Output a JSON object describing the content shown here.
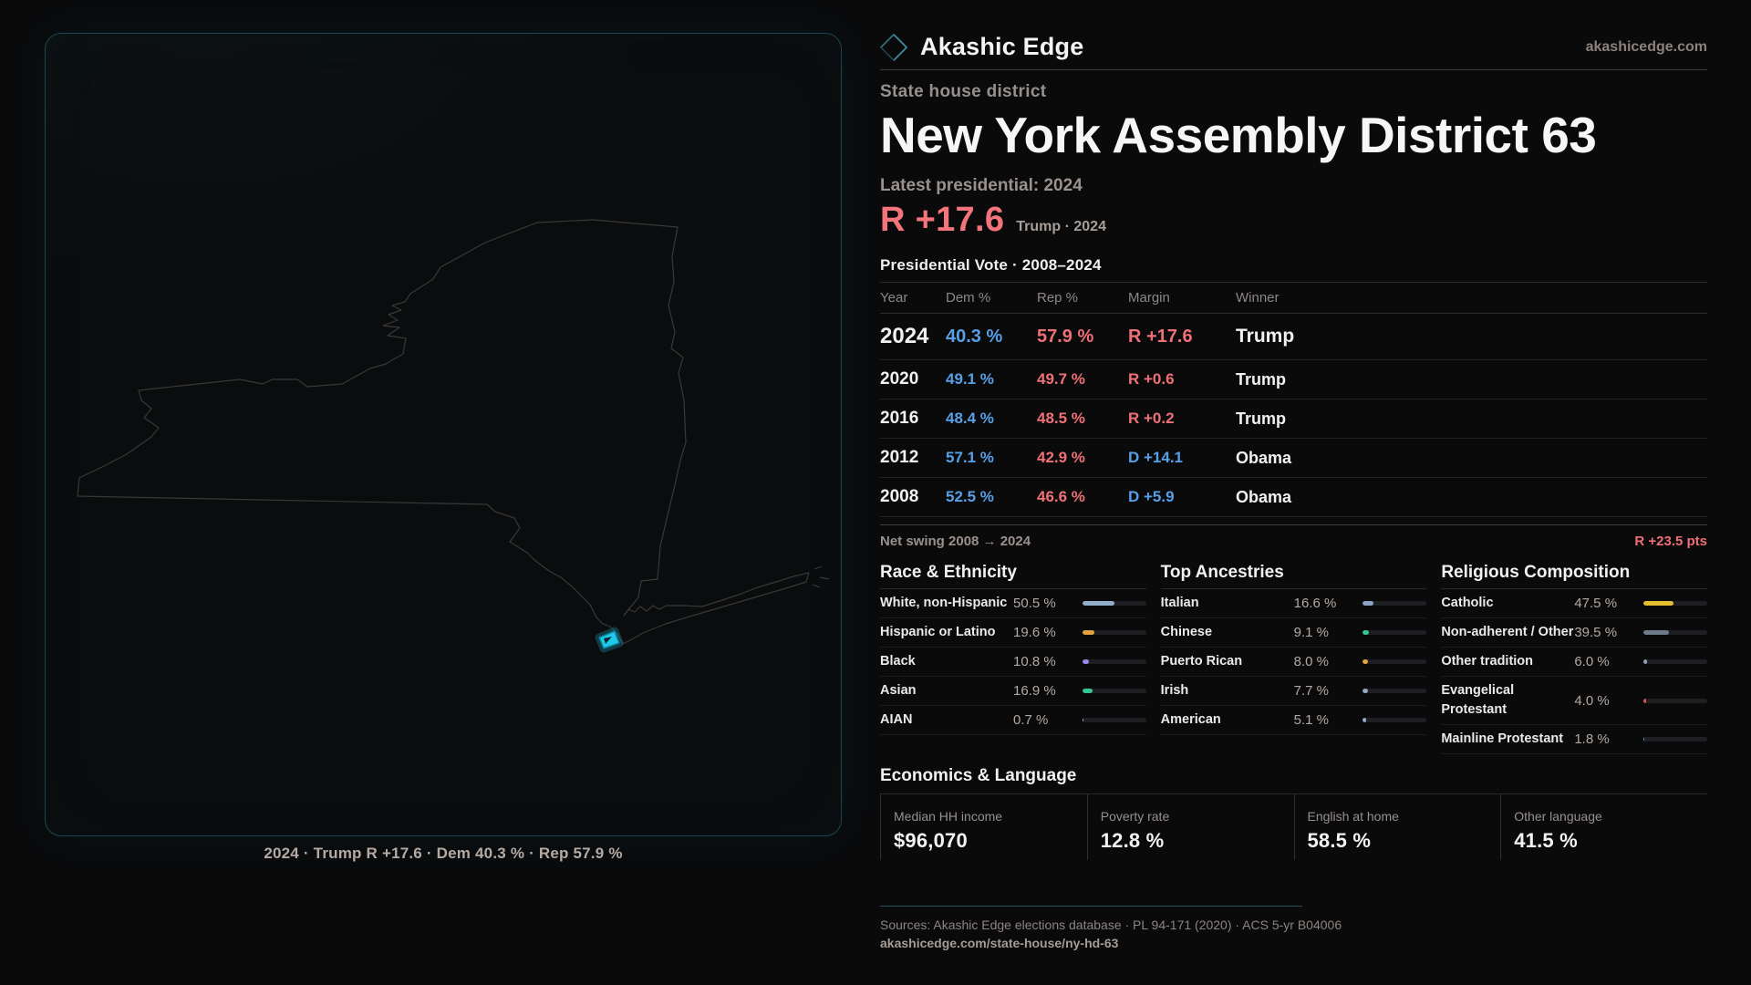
{
  "header": {
    "brand": "Akashic Edge",
    "domain": "akashicedge.com",
    "eyebrow": "State house district",
    "title": "New York Assembly District 63",
    "latest_label": "Latest presidential: 2024",
    "latest_margin": "R +17.6",
    "latest_sub": "Trump · 2024"
  },
  "map": {
    "caption": "2024 · Trump R +17.6 · Dem 40.3 % · Rep 57.9 %",
    "district_color": "#1ec9ec"
  },
  "vote_table": {
    "section_title": "Presidential Vote · 2008–2024",
    "columns": {
      "year": "Year",
      "dem": "Dem %",
      "rep": "Rep %",
      "margin": "Margin",
      "winner": "Winner"
    },
    "rows": [
      {
        "year": "2024",
        "dem": "40.3 %",
        "rep": "57.9 %",
        "margin": "R +17.6",
        "winner": "Trump"
      },
      {
        "year": "2020",
        "dem": "49.1 %",
        "rep": "49.7 %",
        "margin": "R +0.6",
        "winner": "Trump"
      },
      {
        "year": "2016",
        "dem": "48.4 %",
        "rep": "48.5 %",
        "margin": "R +0.2",
        "winner": "Trump"
      },
      {
        "year": "2012",
        "dem": "57.1 %",
        "rep": "42.9 %",
        "margin": "D +14.1",
        "winner": "Obama"
      },
      {
        "year": "2008",
        "dem": "52.5 %",
        "rep": "46.6 %",
        "margin": "D +5.9",
        "winner": "Obama"
      }
    ],
    "net_swing_label": "Net swing 2008 → 2024",
    "net_swing_value": "R +23.5 pts"
  },
  "race": {
    "title": "Race & Ethnicity",
    "rows": [
      {
        "label": "White, non-Hispanic",
        "value": "50.5 %",
        "pct": 50.5,
        "color": "#93aecb"
      },
      {
        "label": "Hispanic or Latino",
        "value": "19.6 %",
        "pct": 19.6,
        "color": "#e3a43b"
      },
      {
        "label": "Black",
        "value": "10.8 %",
        "pct": 10.8,
        "color": "#9d85e8"
      },
      {
        "label": "Asian",
        "value": "16.9 %",
        "pct": 16.9,
        "color": "#35c492"
      },
      {
        "label": "AIAN",
        "value": "0.7 %",
        "pct": 0.7,
        "color": "#9aa8bd"
      }
    ]
  },
  "ancestries": {
    "title": "Top Ancestries",
    "rows": [
      {
        "label": "Italian",
        "value": "16.6 %",
        "pct": 16.6,
        "color": "#8ba3c2"
      },
      {
        "label": "Chinese",
        "value": "9.1 %",
        "pct": 9.1,
        "color": "#35c492"
      },
      {
        "label": "Puerto Rican",
        "value": "8.0 %",
        "pct": 8.0,
        "color": "#e3a43b"
      },
      {
        "label": "Irish",
        "value": "7.7 %",
        "pct": 7.7,
        "color": "#93a8c6"
      },
      {
        "label": "American",
        "value": "5.1 %",
        "pct": 5.1,
        "color": "#93a8c6"
      }
    ]
  },
  "religion": {
    "title": "Religious Composition",
    "rows": [
      {
        "label": "Catholic",
        "value": "47.5 %",
        "pct": 47.5,
        "color": "#e5bd2f"
      },
      {
        "label": "Non-adherent / Other",
        "value": "39.5 %",
        "pct": 39.5,
        "color": "#6e7989"
      },
      {
        "label": "Other tradition",
        "value": "6.0 %",
        "pct": 6.0,
        "color": "#8fa0b5"
      },
      {
        "label": "Evangelical Protestant",
        "value": "4.0 %",
        "pct": 4.0,
        "color": "#dd5454"
      },
      {
        "label": "Mainline Protestant",
        "value": "1.8 %",
        "pct": 1.8,
        "color": "#5b9bd8"
      }
    ]
  },
  "economics": {
    "title": "Economics & Language",
    "stats": [
      {
        "label": "Median HH income",
        "value": "$96,070"
      },
      {
        "label": "Poverty rate",
        "value": "12.8 %"
      },
      {
        "label": "English at home",
        "value": "58.5 %"
      },
      {
        "label": "Other language",
        "value": "41.5 %"
      }
    ]
  },
  "footer": {
    "sources": "Sources: Akashic Edge elections database · PL 94-171 (2020) · ACS 5-yr B04006",
    "permalink": "akashicedge.com/state-house/ny-hd-63"
  },
  "colors": {
    "dem": "#57a0e8",
    "rep": "#ef7077",
    "accent": "#1ec9ec"
  }
}
